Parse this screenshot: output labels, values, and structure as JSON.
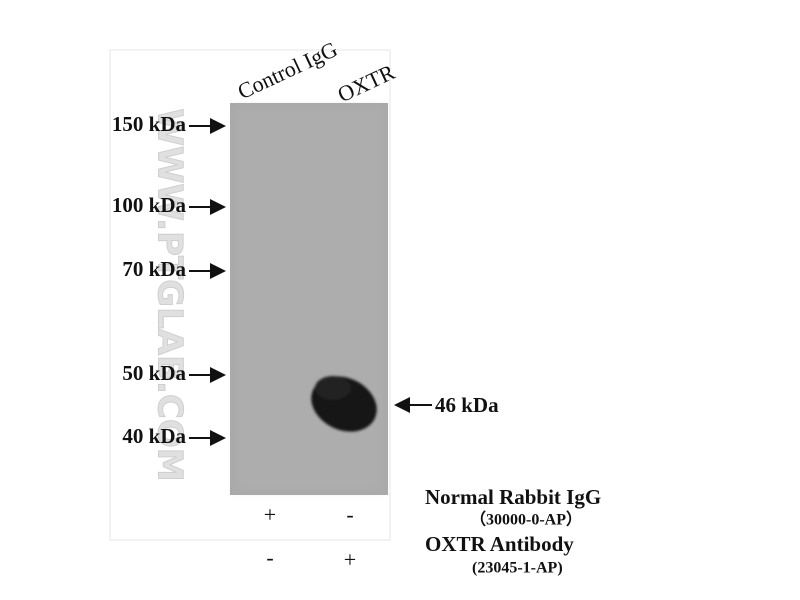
{
  "figure": {
    "watermark": "WWW.PTGLAB.COM",
    "lanes": [
      "Control IgG",
      "OXTR"
    ],
    "markers": [
      "150 kDa",
      "100 kDa",
      "70 kDa",
      "50 kDa",
      "40 kDa"
    ],
    "band_label": "46 kDa",
    "rows": [
      {
        "name": "Normal Rabbit IgG",
        "catalog": "（30000-0-AP）",
        "signs": [
          "+",
          "-"
        ]
      },
      {
        "name": "OXTR Antibody",
        "catalog": "(23045-1-AP)",
        "signs": [
          "-",
          "+"
        ]
      }
    ]
  }
}
